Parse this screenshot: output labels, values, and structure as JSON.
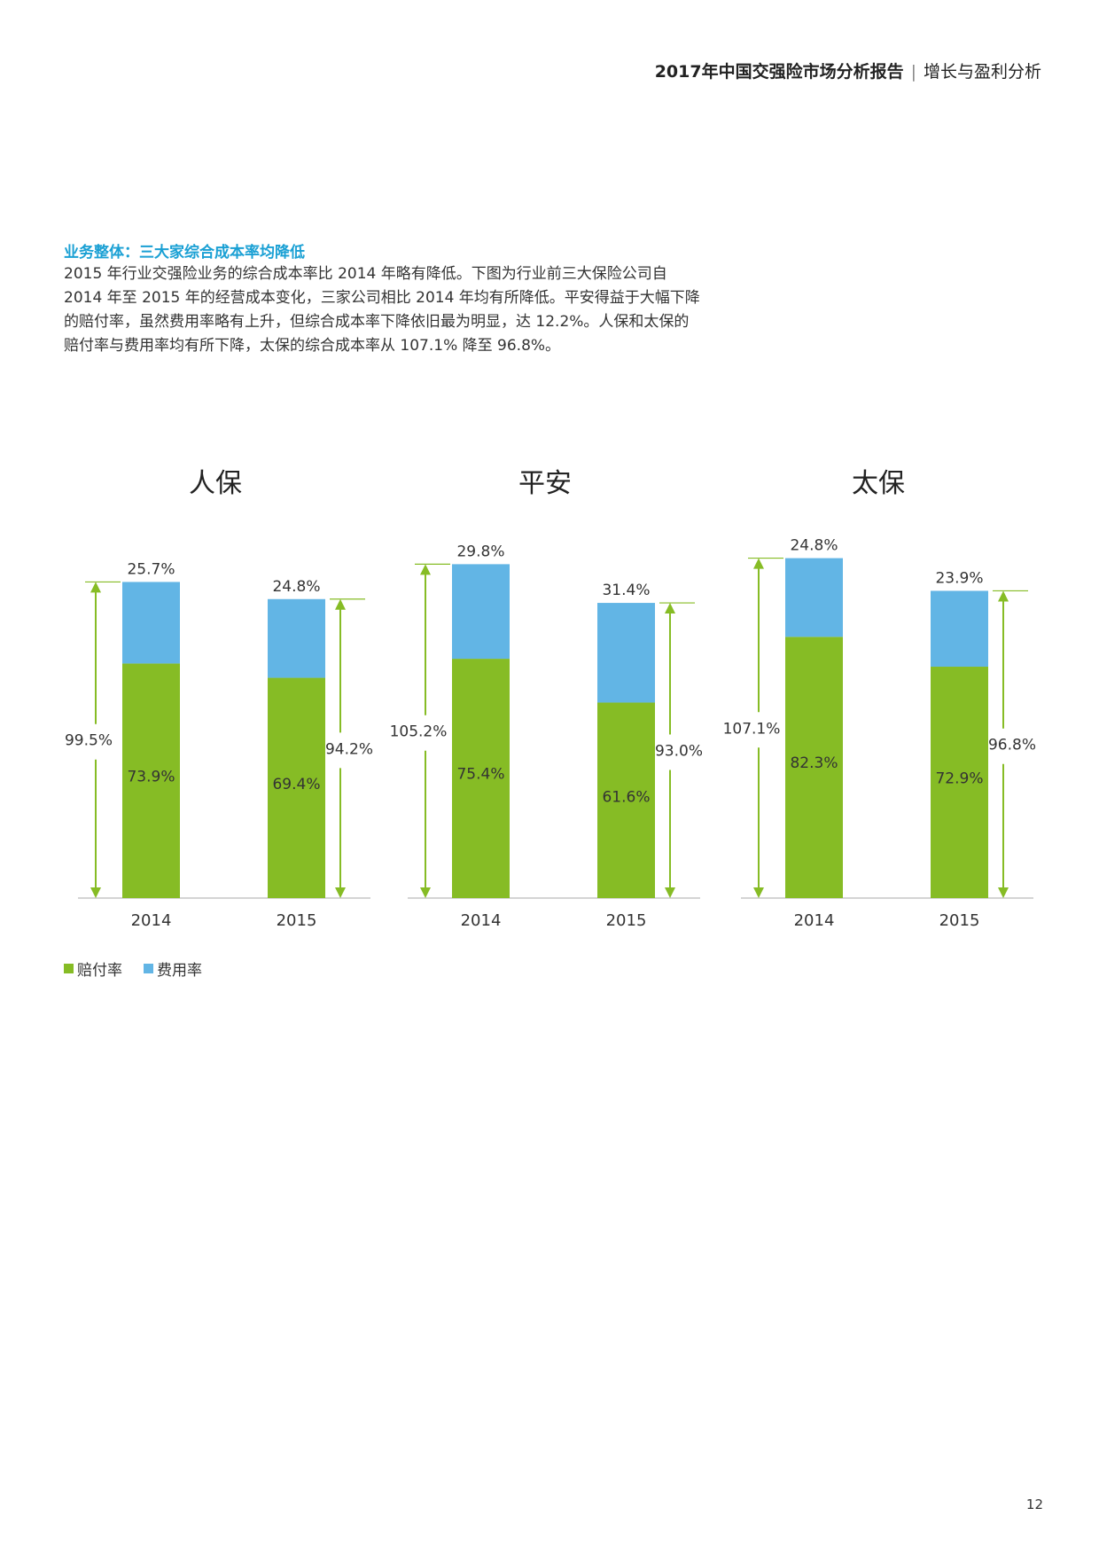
{
  "header": {
    "title": "2017年中国交强险市场分析报告",
    "separator": "|",
    "subtitle": "增长与盈利分析"
  },
  "section": {
    "heading": "业务整体：三大家综合成本率均降低",
    "paragraph": " 2015 年行业交强险业务的综合成本率比 2014 年略有降低。下图为行业前三大保险公司自 2014 年至 2015 年的经营成本变化，三家公司相比 2014 年均有所降低。平安得益于大幅下降的赔付率，虽然费用率略有上升，但综合成本率下降依旧最为明显，达 12.2%。人保和太保的赔付率与费用率均有所下降，太保的综合成本率从 107.1% 降至 96.8%。"
  },
  "colors": {
    "loss": "#86bc25",
    "expense": "#62b5e5",
    "arrow": "#86bc25",
    "axis": "#bbbbbb",
    "heading": "#1aa0d4"
  },
  "chart_data": [
    {
      "type": "bar",
      "stacked": true,
      "title": "人保",
      "categories": [
        "2014",
        "2015"
      ],
      "series": [
        {
          "name": "赔付率",
          "values": [
            73.9,
            69.4
          ]
        },
        {
          "name": "费用率",
          "values": [
            25.7,
            24.8
          ]
        }
      ],
      "value_labels": {
        "loss": [
          "73.9%",
          "69.4%"
        ],
        "expense": [
          "25.7%",
          "24.8%"
        ],
        "total": [
          "99.5%",
          "94.2%"
        ]
      }
    },
    {
      "type": "bar",
      "stacked": true,
      "title": "平安",
      "categories": [
        "2014",
        "2015"
      ],
      "series": [
        {
          "name": "赔付率",
          "values": [
            75.4,
            61.6
          ]
        },
        {
          "name": "费用率",
          "values": [
            29.8,
            31.4
          ]
        }
      ],
      "value_labels": {
        "loss": [
          "75.4%",
          "61.6%"
        ],
        "expense": [
          "29.8%",
          "31.4%"
        ],
        "total": [
          "105.2%",
          "93.0%"
        ]
      }
    },
    {
      "type": "bar",
      "stacked": true,
      "title": "太保",
      "categories": [
        "2014",
        "2015"
      ],
      "series": [
        {
          "name": "赔付率",
          "values": [
            82.3,
            72.9
          ]
        },
        {
          "name": "费用率",
          "values": [
            24.8,
            23.9
          ]
        }
      ],
      "value_labels": {
        "loss": [
          "82.3%",
          "72.9%"
        ],
        "expense": [
          "24.8%",
          "23.9%"
        ],
        "total": [
          "107.1%",
          "96.8%"
        ]
      }
    }
  ],
  "legend": {
    "items": [
      {
        "label": "赔付率",
        "color": "#86bc25"
      },
      {
        "label": "费用率",
        "color": "#62b5e5"
      }
    ]
  },
  "page_number": "12"
}
